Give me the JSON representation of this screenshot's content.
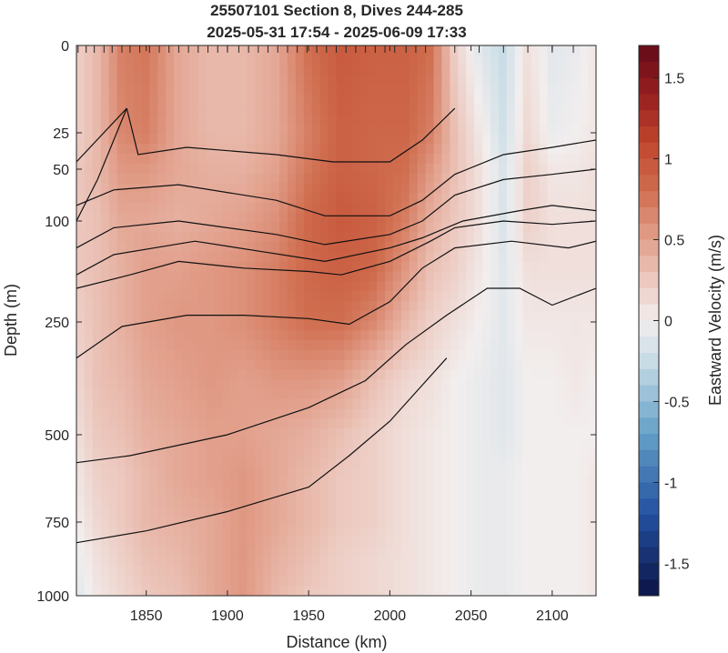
{
  "chart_data": {
    "type": "heatmap",
    "title": [
      "25507101 Section 8, Dives 244-285",
      "2025-05-31 17:54 - 2025-06-09 17:33"
    ],
    "xlabel": "Distance (km)",
    "ylabel": "Depth (m)",
    "xlim": [
      1807,
      2127
    ],
    "ylim": [
      0,
      1000
    ],
    "x_ticks": [
      1850,
      1900,
      1950,
      2000,
      2050,
      2100
    ],
    "y_ticks": [
      0,
      25,
      50,
      100,
      250,
      500,
      750,
      1000
    ],
    "y_scale": "nonlinear (compressed with depth)",
    "grid": false,
    "colorbar": {
      "label": "Eastward Velocity (m/s)",
      "range": [
        -1.7,
        1.7
      ],
      "ticks": [
        -1.5,
        -1,
        -0.5,
        0,
        0.5,
        1,
        1.5
      ],
      "colormap": "diverging blue-white-red"
    },
    "dive_marks_x": [
      1808,
      1813,
      1818,
      1824,
      1829,
      1835,
      1840,
      1846,
      1852,
      1858,
      1864,
      1870,
      1876,
      1882,
      1888,
      1894,
      1900,
      1907,
      1913,
      1919,
      1925,
      1931,
      1937,
      1943,
      1949,
      1955,
      1961,
      1967,
      1973,
      1979,
      1985,
      1991,
      1997,
      2003,
      2010,
      2016,
      2022,
      2040,
      2055,
      2070,
      2085,
      2100,
      2113
    ],
    "field": {
      "x": [
        1807,
        1820,
        1835,
        1850,
        1870,
        1890,
        1910,
        1930,
        1950,
        1970,
        1990,
        2010,
        2025,
        2040,
        2055,
        2070,
        2085,
        2100,
        2115,
        2127
      ],
      "depth": [
        0,
        25,
        50,
        100,
        170,
        250,
        380,
        500,
        625,
        750,
        875,
        1000
      ],
      "velocity": [
        [
          0.2,
          0.35,
          0.7,
          0.75,
          0.45,
          0.35,
          0.35,
          0.45,
          0.8,
          0.95,
          0.9,
          0.9,
          0.8,
          0.2,
          -0.1,
          -0.25,
          0.1,
          -0.1,
          -0.05,
          0.05
        ],
        [
          0.2,
          0.35,
          0.65,
          0.7,
          0.45,
          0.35,
          0.35,
          0.45,
          0.7,
          0.9,
          0.85,
          0.85,
          0.7,
          0.3,
          0.05,
          -0.2,
          0.15,
          -0.05,
          0.0,
          0.05
        ],
        [
          0.25,
          0.35,
          0.55,
          0.55,
          0.45,
          0.4,
          0.4,
          0.5,
          0.75,
          0.9,
          0.85,
          0.8,
          0.55,
          0.3,
          0.1,
          -0.15,
          0.2,
          0.05,
          0.05,
          0.1
        ],
        [
          0.25,
          0.3,
          0.45,
          0.45,
          0.4,
          0.45,
          0.5,
          0.6,
          0.85,
          0.95,
          0.9,
          0.7,
          0.4,
          0.25,
          0.1,
          -0.15,
          0.2,
          0.1,
          0.1,
          0.1
        ],
        [
          0.25,
          0.3,
          0.4,
          0.5,
          0.5,
          0.55,
          0.6,
          0.7,
          0.85,
          0.9,
          0.85,
          0.55,
          0.3,
          0.2,
          0.05,
          -0.1,
          0.1,
          0.1,
          0.1,
          0.1
        ],
        [
          0.2,
          0.3,
          0.4,
          0.5,
          0.55,
          0.55,
          0.6,
          0.7,
          0.8,
          0.8,
          0.65,
          0.35,
          0.2,
          0.1,
          0.0,
          -0.1,
          0.05,
          0.05,
          0.05,
          0.05
        ],
        [
          0.15,
          0.3,
          0.35,
          0.45,
          0.5,
          0.55,
          0.5,
          0.55,
          0.55,
          0.5,
          0.3,
          0.15,
          0.1,
          0.0,
          -0.05,
          -0.1,
          0.0,
          0.0,
          0.05,
          0.0
        ],
        [
          0.1,
          0.25,
          0.3,
          0.4,
          0.45,
          0.5,
          0.5,
          0.45,
          0.4,
          0.3,
          0.2,
          0.1,
          0.05,
          0.0,
          -0.05,
          -0.1,
          0.0,
          0.0,
          0.0,
          0.0
        ],
        [
          0.05,
          0.2,
          0.25,
          0.35,
          0.45,
          0.5,
          0.55,
          0.45,
          0.35,
          0.25,
          0.2,
          0.1,
          0.05,
          0.0,
          -0.05,
          -0.05,
          0.0,
          0.0,
          0.0,
          0.05
        ],
        [
          0.0,
          0.15,
          0.25,
          0.35,
          0.4,
          0.45,
          0.55,
          0.45,
          0.35,
          0.25,
          0.2,
          0.1,
          0.05,
          0.0,
          -0.05,
          -0.05,
          0.0,
          0.0,
          0.0,
          0.05
        ],
        [
          -0.05,
          0.1,
          0.2,
          0.3,
          0.35,
          0.45,
          0.55,
          0.4,
          0.3,
          0.2,
          0.15,
          0.1,
          0.05,
          0.0,
          -0.05,
          -0.05,
          0.0,
          0.0,
          0.0,
          0.05
        ],
        [
          -0.1,
          0.05,
          0.15,
          0.25,
          0.3,
          0.45,
          0.55,
          0.35,
          0.25,
          0.2,
          0.15,
          0.1,
          0.05,
          0.0,
          -0.05,
          -0.05,
          0.0,
          0.0,
          0.0,
          0.05
        ]
      ]
    },
    "contours": [
      {
        "x": [
          1838,
          1820,
          1807
        ],
        "depth": [
          18,
          60,
          100
        ]
      },
      {
        "x": [
          1838,
          1845,
          1875,
          1930,
          1965,
          2000,
          2020,
          2040
        ],
        "depth": [
          18,
          40,
          35,
          40,
          45,
          45,
          30,
          18
        ]
      },
      {
        "x": [
          1838,
          1807
        ],
        "depth": [
          18,
          45
        ]
      },
      {
        "x": [
          1807,
          1830,
          1870,
          1930,
          1960,
          2000,
          2020,
          2040,
          2070,
          2100,
          2127
        ],
        "depth": [
          85,
          70,
          65,
          80,
          95,
          95,
          80,
          55,
          40,
          35,
          30
        ]
      },
      {
        "x": [
          1807,
          1830,
          1870,
          1930,
          1960,
          2000,
          2020,
          2040,
          2070,
          2100,
          2127
        ],
        "depth": [
          140,
          110,
          100,
          120,
          135,
          120,
          100,
          75,
          60,
          55,
          50
        ]
      },
      {
        "x": [
          1807,
          1830,
          1880,
          1920,
          1960,
          2000,
          2020,
          2045,
          2080,
          2100,
          2127
        ],
        "depth": [
          180,
          150,
          130,
          145,
          160,
          140,
          125,
          100,
          90,
          85,
          90
        ]
      },
      {
        "x": [
          1807,
          1840,
          1870,
          1910,
          1950,
          1970,
          2000,
          2025,
          2040,
          2070,
          2100,
          2127
        ],
        "depth": [
          200,
          180,
          160,
          170,
          175,
          180,
          160,
          130,
          110,
          100,
          105,
          100
        ]
      },
      {
        "x": [
          1807,
          1835,
          1875,
          1910,
          1950,
          1975,
          2000,
          2020,
          2040,
          2075,
          2110,
          2127
        ],
        "depth": [
          330,
          260,
          240,
          240,
          245,
          255,
          220,
          170,
          140,
          130,
          140,
          130
        ]
      },
      {
        "x": [
          1807,
          1840,
          1900,
          1950,
          1985,
          2010,
          2035,
          2060,
          2080,
          2100,
          2127
        ],
        "depth": [
          580,
          560,
          500,
          440,
          380,
          300,
          240,
          200,
          200,
          225,
          200
        ]
      },
      {
        "x": [
          1807,
          1850,
          1900,
          1950,
          1975,
          2000,
          2020,
          2035
        ],
        "depth": [
          820,
          780,
          720,
          650,
          560,
          470,
          390,
          330
        ]
      }
    ]
  }
}
